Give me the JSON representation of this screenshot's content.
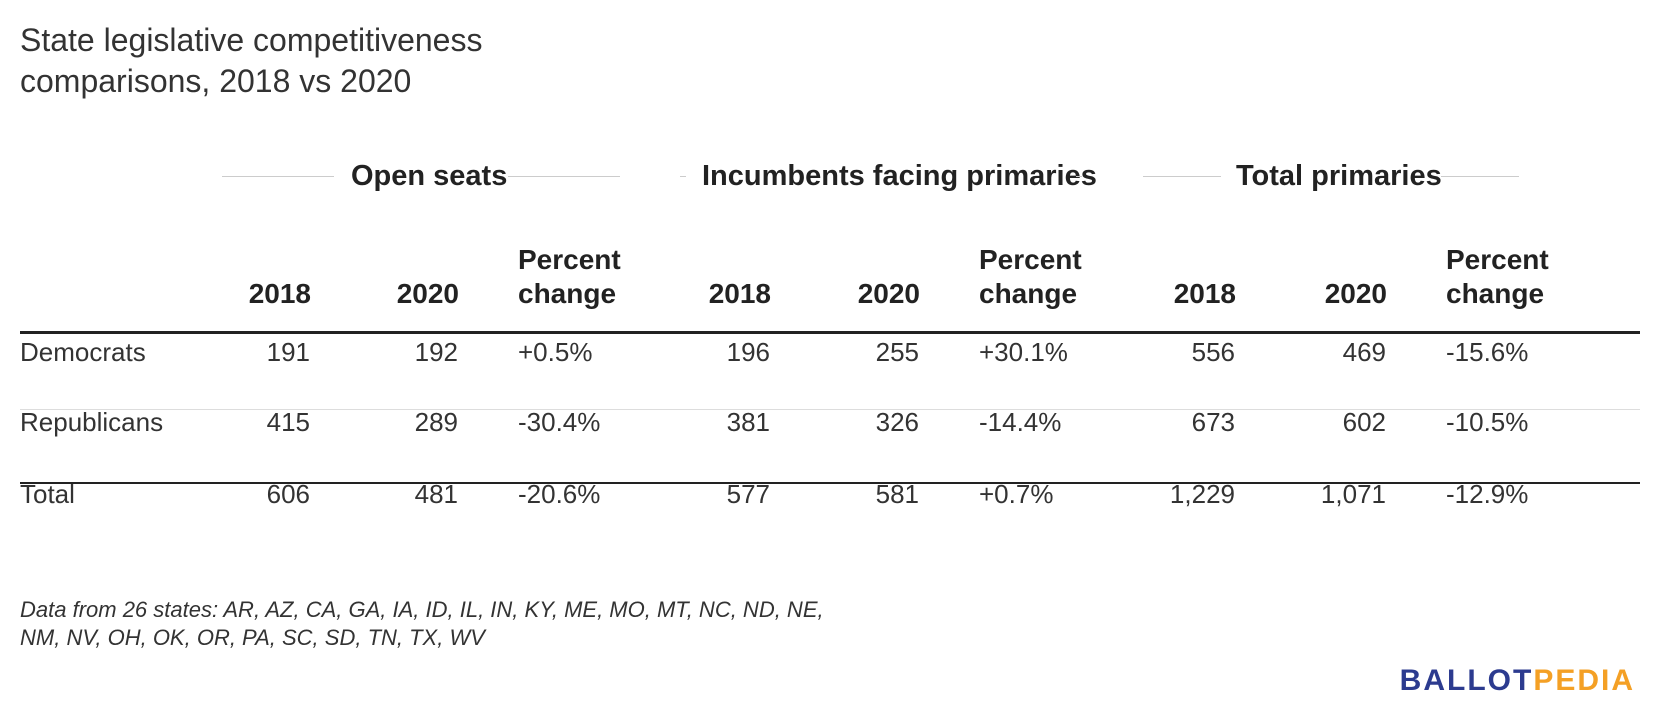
{
  "title_line1": "State legislative competitiveness",
  "title_line2": "comparisons, 2018 vs 2020",
  "chart_data": {
    "type": "table",
    "groups": [
      "Open seats",
      "Incumbents facing primaries",
      "Total primaries"
    ],
    "columns": [
      "2018",
      "2020",
      "Percent change",
      "2018",
      "2020",
      "Percent change",
      "2018",
      "2020",
      "Percent change"
    ],
    "rows": [
      {
        "label": "Democrats",
        "values": [
          "191",
          "192",
          "+0.5%",
          "196",
          "255",
          "+30.1%",
          "556",
          "469",
          "-15.6%"
        ]
      },
      {
        "label": "Republicans",
        "values": [
          "415",
          "289",
          "-30.4%",
          "381",
          "326",
          "-14.4%",
          "673",
          "602",
          "-10.5%"
        ]
      },
      {
        "label": "Total",
        "values": [
          "606",
          "481",
          "-20.6%",
          "577",
          "581",
          "+0.7%",
          "1,229",
          "1,071",
          "-12.9%"
        ]
      }
    ]
  },
  "headers": {
    "y2018": "2018",
    "y2020": "2020",
    "pct_line1": "Percent",
    "pct_line2": "change"
  },
  "footnote_line1": "Data from 26 states: AR, AZ, CA, GA, IA, ID, IL, IN, KY, ME, MO, MT, NC, ND, NE,",
  "footnote_line2": "NM, NV, OH, OK, OR, PA, SC, SD, TN, TX, WV",
  "logo": {
    "part1": "BALLOT",
    "part2": "PEDIA"
  },
  "colors": {
    "logo_blue": "#2c3b8f",
    "logo_orange": "#f4a025",
    "text": "#333333"
  }
}
